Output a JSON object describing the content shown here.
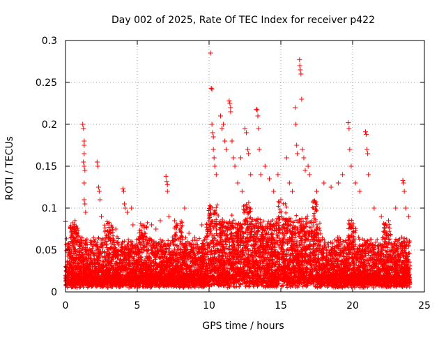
{
  "chart_data": {
    "type": "scatter",
    "title": "Day 002 of 2025, Rate Of TEC Index for receiver p422",
    "xlabel": "GPS time / hours",
    "ylabel": "ROTI / TECUs",
    "xlim": [
      0,
      25
    ],
    "ylim": [
      0,
      0.3
    ],
    "xticks": [
      0,
      5,
      10,
      15,
      20,
      25
    ],
    "yticks": [
      0,
      0.05,
      0.1,
      0.15,
      0.2,
      0.25,
      0.3
    ],
    "ytick_labels": [
      "0",
      "0.05",
      "0.1",
      "0.15",
      "0.2",
      "0.25",
      "0.3"
    ],
    "grid": true,
    "legend": "none",
    "marker": "+",
    "marker_color": "#ff0000",
    "x_data_range": [
      0,
      24
    ],
    "series": [
      {
        "points": [
          [
            0.0,
            0.084
          ],
          [
            0.3,
            0.055
          ],
          [
            0.5,
            0.058
          ],
          [
            0.8,
            0.06
          ],
          [
            1.2,
            0.2
          ],
          [
            1.25,
            0.195
          ],
          [
            1.3,
            0.18
          ],
          [
            1.3,
            0.175
          ],
          [
            1.3,
            0.165
          ],
          [
            1.25,
            0.155
          ],
          [
            1.3,
            0.15
          ],
          [
            1.35,
            0.145
          ],
          [
            1.3,
            0.13
          ],
          [
            1.3,
            0.11
          ],
          [
            1.35,
            0.105
          ],
          [
            1.4,
            0.095
          ],
          [
            2.2,
            0.155
          ],
          [
            2.25,
            0.15
          ],
          [
            2.3,
            0.125
          ],
          [
            2.35,
            0.12
          ],
          [
            2.4,
            0.11
          ],
          [
            2.5,
            0.09
          ],
          [
            3.0,
            0.065
          ],
          [
            3.5,
            0.075
          ],
          [
            4.0,
            0.123
          ],
          [
            4.05,
            0.12
          ],
          [
            4.1,
            0.105
          ],
          [
            4.15,
            0.1
          ],
          [
            4.3,
            0.095
          ],
          [
            4.6,
            0.1
          ],
          [
            4.7,
            0.08
          ],
          [
            5.5,
            0.07
          ],
          [
            6.0,
            0.08
          ],
          [
            6.3,
            0.075
          ],
          [
            6.6,
            0.085
          ],
          [
            7.0,
            0.138
          ],
          [
            7.05,
            0.132
          ],
          [
            7.1,
            0.128
          ],
          [
            7.1,
            0.12
          ],
          [
            7.2,
            0.09
          ],
          [
            7.6,
            0.085
          ],
          [
            8.0,
            0.075
          ],
          [
            8.3,
            0.1
          ],
          [
            8.6,
            0.07
          ],
          [
            9.0,
            0.065
          ],
          [
            9.5,
            0.08
          ],
          [
            10.1,
            0.285
          ],
          [
            10.15,
            0.243
          ],
          [
            10.2,
            0.242
          ],
          [
            10.2,
            0.2
          ],
          [
            10.25,
            0.19
          ],
          [
            10.3,
            0.185
          ],
          [
            10.3,
            0.17
          ],
          [
            10.35,
            0.16
          ],
          [
            10.4,
            0.15
          ],
          [
            10.5,
            0.14
          ],
          [
            10.8,
            0.21
          ],
          [
            10.9,
            0.195
          ],
          [
            11.0,
            0.2
          ],
          [
            11.1,
            0.18
          ],
          [
            11.2,
            0.17
          ],
          [
            11.4,
            0.228
          ],
          [
            11.45,
            0.225
          ],
          [
            11.5,
            0.22
          ],
          [
            11.5,
            0.215
          ],
          [
            11.6,
            0.18
          ],
          [
            11.7,
            0.16
          ],
          [
            11.8,
            0.15
          ],
          [
            12.0,
            0.13
          ],
          [
            12.2,
            0.16
          ],
          [
            12.3,
            0.12
          ],
          [
            12.5,
            0.195
          ],
          [
            12.6,
            0.19
          ],
          [
            12.7,
            0.17
          ],
          [
            12.75,
            0.165
          ],
          [
            12.9,
            0.14
          ],
          [
            13.3,
            0.218
          ],
          [
            13.35,
            0.217
          ],
          [
            13.4,
            0.21
          ],
          [
            13.45,
            0.195
          ],
          [
            13.5,
            0.17
          ],
          [
            13.6,
            0.14
          ],
          [
            13.9,
            0.15
          ],
          [
            14.2,
            0.135
          ],
          [
            14.5,
            0.12
          ],
          [
            14.8,
            0.14
          ],
          [
            15.0,
            0.11
          ],
          [
            15.4,
            0.16
          ],
          [
            15.6,
            0.13
          ],
          [
            15.8,
            0.12
          ],
          [
            16.0,
            0.22
          ],
          [
            16.05,
            0.2
          ],
          [
            16.1,
            0.175
          ],
          [
            16.15,
            0.165
          ],
          [
            16.3,
            0.277
          ],
          [
            16.32,
            0.27
          ],
          [
            16.35,
            0.265
          ],
          [
            16.4,
            0.26
          ],
          [
            16.45,
            0.23
          ],
          [
            16.5,
            0.17
          ],
          [
            16.6,
            0.16
          ],
          [
            16.7,
            0.145
          ],
          [
            16.9,
            0.15
          ],
          [
            17.0,
            0.14
          ],
          [
            17.5,
            0.12
          ],
          [
            18.0,
            0.13
          ],
          [
            18.5,
            0.125
          ],
          [
            19.0,
            0.13
          ],
          [
            19.3,
            0.14
          ],
          [
            19.7,
            0.202
          ],
          [
            19.75,
            0.195
          ],
          [
            19.8,
            0.17
          ],
          [
            19.9,
            0.15
          ],
          [
            20.2,
            0.13
          ],
          [
            20.5,
            0.12
          ],
          [
            20.9,
            0.191
          ],
          [
            20.95,
            0.188
          ],
          [
            21.0,
            0.17
          ],
          [
            21.05,
            0.165
          ],
          [
            21.1,
            0.14
          ],
          [
            21.5,
            0.1
          ],
          [
            22.0,
            0.09
          ],
          [
            22.5,
            0.085
          ],
          [
            23.0,
            0.1
          ],
          [
            23.5,
            0.133
          ],
          [
            23.55,
            0.13
          ],
          [
            23.6,
            0.12
          ],
          [
            23.7,
            0.1
          ],
          [
            23.9,
            0.09
          ]
        ],
        "envelope_note": "dense bulk of points between 0.005 and ~0.06, denser and higher (to ~0.1) between 10h and 17h"
      }
    ]
  }
}
